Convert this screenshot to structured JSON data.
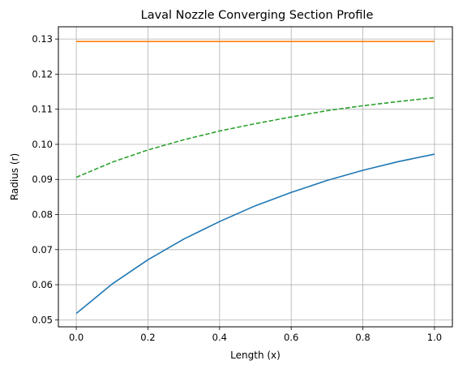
{
  "chart_data": {
    "type": "line",
    "title": "Laval Nozzle Converging Section Profile",
    "xlabel": "Length (x)",
    "ylabel": "Radius (r)",
    "xlim": [
      -0.05,
      1.05
    ],
    "ylim": [
      0.048,
      0.1335
    ],
    "xticks": [
      0.0,
      0.2,
      0.4,
      0.6,
      0.8,
      1.0
    ],
    "xtick_labels": [
      "0.0",
      "0.2",
      "0.4",
      "0.6",
      "0.8",
      "1.0"
    ],
    "yticks": [
      0.05,
      0.06,
      0.07,
      0.08,
      0.09,
      0.1,
      0.11,
      0.12,
      0.13
    ],
    "ytick_labels": [
      "0.05",
      "0.06",
      "0.07",
      "0.08",
      "0.09",
      "0.10",
      "0.11",
      "0.12",
      "0.13"
    ],
    "grid": true,
    "legend": false,
    "series": [
      {
        "color": "#1f77b4",
        "style": "solid",
        "x": [
          0.0,
          0.1,
          0.2,
          0.3,
          0.4,
          0.5,
          0.6,
          0.7,
          0.8,
          0.9,
          1.0
        ],
        "y": [
          0.0518,
          0.0602,
          0.0671,
          0.073,
          0.078,
          0.0825,
          0.0863,
          0.0897,
          0.0926,
          0.0951,
          0.0972
        ]
      },
      {
        "color": "#ff7f0e",
        "style": "solid",
        "x": [
          0.0,
          1.0
        ],
        "y": [
          0.1293,
          0.1293
        ]
      },
      {
        "color": "#2ca02c",
        "style": "dashed",
        "x": [
          0.0,
          0.1,
          0.2,
          0.3,
          0.4,
          0.5,
          0.6,
          0.7,
          0.8,
          0.9,
          1.0
        ],
        "y": [
          0.0906,
          0.0949,
          0.0984,
          0.1013,
          0.1038,
          0.1059,
          0.1078,
          0.1096,
          0.111,
          0.1122,
          0.1133
        ]
      }
    ]
  }
}
